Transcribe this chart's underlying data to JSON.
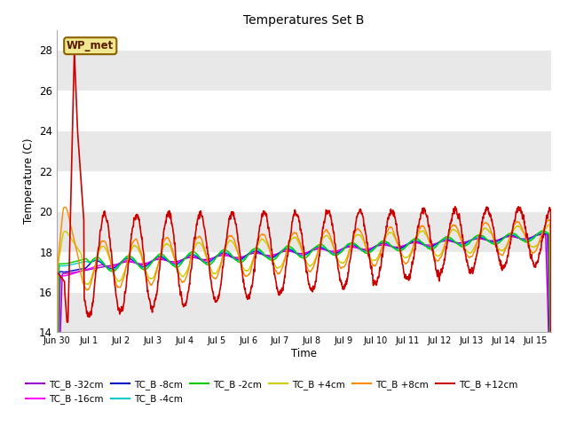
{
  "title": "Temperatures Set B",
  "xlabel": "Time",
  "ylabel": "Temperature (C)",
  "ylim": [
    14,
    29
  ],
  "yticks": [
    14,
    16,
    18,
    20,
    22,
    24,
    26,
    28
  ],
  "bg_color": "#ffffff",
  "series": [
    {
      "label": "TC_B -32cm",
      "color": "#9900cc",
      "lw": 1.0
    },
    {
      "label": "TC_B -16cm",
      "color": "#ff00ff",
      "lw": 1.0
    },
    {
      "label": "TC_B -8cm",
      "color": "#0000cc",
      "lw": 1.0
    },
    {
      "label": "TC_B -4cm",
      "color": "#00cccc",
      "lw": 1.0
    },
    {
      "label": "TC_B -2cm",
      "color": "#00cc00",
      "lw": 1.0
    },
    {
      "label": "TC_B +4cm",
      "color": "#cccc00",
      "lw": 1.0
    },
    {
      "label": "TC_B +8cm",
      "color": "#ff8800",
      "lw": 1.0
    },
    {
      "label": "TC_B +12cm",
      "color": "#cc0000",
      "lw": 1.2
    }
  ],
  "xtick_labels": [
    "Jun 30",
    "Jul 1",
    "Jul 2",
    "Jul 3",
    "Jul 4",
    "Jul 5",
    "Jul 6",
    "Jul 7",
    "Jul 8",
    "Jul 9",
    "Jul 10",
    "Jul 11",
    "Jul 12",
    "Jul 13",
    "Jul 14",
    "Jul 15"
  ],
  "n_days": 15.5,
  "ppd": 144
}
